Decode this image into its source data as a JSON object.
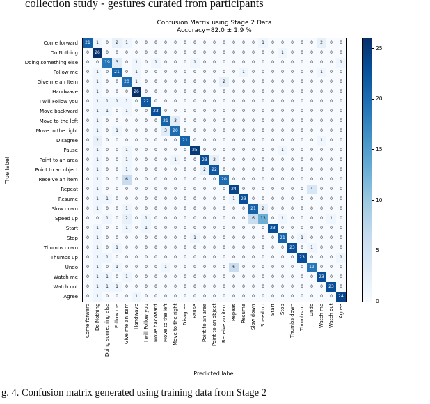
{
  "page": {
    "top_text": "collection study - gestures curated from participants",
    "caption": "g. 4.    Confusion matrix generated using training data from Stage 2"
  },
  "chart_data": {
    "type": "heatmap",
    "title": "Confusion Matrix using Stage 2 Data",
    "subtitle": "Accuracy=82.0 ± 1.9 %",
    "xlabel": "Predicted label",
    "ylabel": "True label",
    "colormap": "Blues",
    "vmin": 0,
    "vmax": 26,
    "colorbar_ticks": [
      0,
      5,
      10,
      15,
      20,
      25
    ],
    "colormap_stops": [
      [
        0,
        [
          247,
          251,
          255
        ]
      ],
      [
        0.125,
        [
          222,
          235,
          247
        ]
      ],
      [
        0.25,
        [
          198,
          219,
          239
        ]
      ],
      [
        0.375,
        [
          158,
          202,
          225
        ]
      ],
      [
        0.5,
        [
          107,
          174,
          214
        ]
      ],
      [
        0.625,
        [
          66,
          146,
          198
        ]
      ],
      [
        0.75,
        [
          33,
          113,
          181
        ]
      ],
      [
        0.875,
        [
          8,
          81,
          156
        ]
      ],
      [
        1,
        [
          8,
          48,
          107
        ]
      ]
    ],
    "labels": [
      "Come forward",
      "Do Nothing",
      "Doing something else",
      "Follow me",
      "Give me an Item",
      "Handwave",
      "I will Follow you",
      "Move backward",
      "Move to the left",
      "Move to the right",
      "Disagree",
      "Pause",
      "Point to an area",
      "Point to an object",
      "Receive an item",
      "Repeat",
      "Resume",
      "Slow down",
      "Speed up",
      "Start",
      "Stop",
      "Thumbs down",
      "Thumbs up",
      "Undo",
      "Watch me",
      "Watch out",
      "Agree"
    ],
    "matrix": [
      [
        21,
        1,
        0,
        2,
        1,
        0,
        0,
        0,
        0,
        0,
        0,
        0,
        0,
        0,
        0,
        0,
        0,
        0,
        1,
        0,
        0,
        0,
        0,
        0,
        2,
        0,
        0
      ],
      [
        0,
        26,
        0,
        0,
        0,
        0,
        0,
        0,
        0,
        0,
        0,
        0,
        0,
        0,
        0,
        0,
        0,
        0,
        0,
        0,
        1,
        0,
        0,
        0,
        0,
        0,
        0
      ],
      [
        0,
        0,
        19,
        3,
        0,
        1,
        0,
        1,
        0,
        0,
        0,
        1,
        0,
        0,
        0,
        0,
        0,
        0,
        0,
        0,
        0,
        0,
        0,
        0,
        0,
        0,
        1
      ],
      [
        0,
        1,
        0,
        21,
        0,
        1,
        0,
        0,
        0,
        0,
        0,
        0,
        0,
        0,
        0,
        0,
        1,
        0,
        0,
        0,
        0,
        0,
        0,
        0,
        1,
        0,
        0
      ],
      [
        0,
        1,
        0,
        0,
        20,
        1,
        0,
        0,
        0,
        0,
        0,
        0,
        0,
        0,
        2,
        0,
        0,
        0,
        0,
        0,
        0,
        0,
        0,
        0,
        0,
        0,
        0
      ],
      [
        0,
        1,
        0,
        0,
        0,
        26,
        0,
        0,
        0,
        0,
        0,
        0,
        0,
        0,
        0,
        0,
        0,
        0,
        0,
        0,
        0,
        0,
        0,
        0,
        0,
        0,
        0
      ],
      [
        0,
        1,
        1,
        1,
        1,
        0,
        22,
        0,
        0,
        0,
        0,
        0,
        0,
        0,
        0,
        0,
        0,
        0,
        0,
        0,
        0,
        0,
        0,
        0,
        0,
        0,
        0
      ],
      [
        0,
        1,
        1,
        0,
        1,
        0,
        0,
        23,
        0,
        0,
        0,
        0,
        0,
        0,
        0,
        0,
        0,
        0,
        0,
        0,
        0,
        0,
        0,
        0,
        0,
        0,
        0
      ],
      [
        0,
        1,
        0,
        0,
        0,
        0,
        0,
        0,
        21,
        3,
        0,
        0,
        0,
        0,
        0,
        0,
        0,
        0,
        0,
        0,
        0,
        0,
        0,
        0,
        0,
        0,
        0
      ],
      [
        0,
        1,
        0,
        1,
        0,
        0,
        0,
        0,
        3,
        20,
        0,
        0,
        0,
        0,
        0,
        0,
        0,
        0,
        0,
        0,
        0,
        0,
        0,
        0,
        0,
        0,
        0
      ],
      [
        0,
        2,
        0,
        0,
        0,
        0,
        0,
        0,
        0,
        0,
        21,
        0,
        0,
        0,
        0,
        0,
        0,
        0,
        0,
        0,
        0,
        0,
        0,
        0,
        1,
        0,
        0
      ],
      [
        0,
        1,
        0,
        0,
        1,
        0,
        0,
        0,
        0,
        0,
        0,
        25,
        0,
        0,
        0,
        0,
        0,
        0,
        0,
        0,
        1,
        0,
        0,
        0,
        0,
        0,
        0
      ],
      [
        0,
        1,
        0,
        0,
        1,
        0,
        0,
        0,
        0,
        1,
        0,
        0,
        23,
        2,
        0,
        0,
        0,
        0,
        0,
        0,
        0,
        0,
        0,
        0,
        0,
        0,
        0
      ],
      [
        0,
        1,
        0,
        0,
        1,
        0,
        0,
        0,
        0,
        0,
        0,
        0,
        2,
        22,
        0,
        0,
        0,
        0,
        0,
        0,
        0,
        0,
        0,
        0,
        0,
        0,
        0
      ],
      [
        0,
        1,
        0,
        0,
        6,
        0,
        0,
        0,
        0,
        0,
        0,
        0,
        0,
        0,
        20,
        0,
        0,
        0,
        0,
        0,
        0,
        0,
        0,
        0,
        0,
        0,
        0
      ],
      [
        0,
        1,
        0,
        0,
        0,
        0,
        0,
        0,
        0,
        0,
        0,
        0,
        0,
        0,
        0,
        24,
        0,
        0,
        0,
        0,
        0,
        0,
        0,
        4,
        0,
        0,
        0
      ],
      [
        0,
        1,
        1,
        0,
        0,
        0,
        0,
        0,
        0,
        0,
        0,
        0,
        0,
        0,
        0,
        1,
        23,
        0,
        0,
        0,
        0,
        0,
        0,
        0,
        0,
        0,
        0
      ],
      [
        0,
        1,
        0,
        0,
        1,
        0,
        0,
        0,
        0,
        0,
        0,
        0,
        0,
        0,
        0,
        0,
        0,
        21,
        2,
        0,
        0,
        0,
        0,
        0,
        0,
        0,
        0
      ],
      [
        0,
        0,
        1,
        0,
        2,
        0,
        1,
        0,
        0,
        0,
        0,
        0,
        0,
        0,
        0,
        0,
        0,
        6,
        13,
        0,
        1,
        0,
        0,
        0,
        0,
        1,
        0
      ],
      [
        0,
        1,
        0,
        0,
        1,
        0,
        1,
        0,
        0,
        0,
        0,
        0,
        0,
        0,
        0,
        0,
        0,
        0,
        0,
        23,
        0,
        0,
        0,
        0,
        0,
        0,
        0
      ],
      [
        0,
        1,
        0,
        0,
        0,
        0,
        0,
        0,
        0,
        0,
        0,
        1,
        0,
        0,
        0,
        0,
        0,
        0,
        0,
        0,
        21,
        0,
        1,
        0,
        0,
        0,
        0
      ],
      [
        0,
        1,
        0,
        1,
        0,
        0,
        0,
        0,
        0,
        0,
        0,
        0,
        0,
        0,
        0,
        0,
        0,
        0,
        0,
        0,
        0,
        23,
        0,
        1,
        0,
        0,
        0
      ],
      [
        0,
        1,
        1,
        0,
        0,
        0,
        0,
        0,
        0,
        0,
        0,
        0,
        0,
        0,
        0,
        0,
        0,
        0,
        0,
        0,
        0,
        0,
        23,
        0,
        0,
        0,
        1
      ],
      [
        0,
        1,
        0,
        1,
        0,
        0,
        0,
        0,
        1,
        0,
        0,
        0,
        0,
        0,
        0,
        6,
        0,
        0,
        0,
        0,
        0,
        0,
        0,
        19,
        0,
        0,
        0
      ],
      [
        0,
        1,
        1,
        0,
        1,
        0,
        0,
        0,
        0,
        0,
        0,
        0,
        0,
        0,
        0,
        0,
        0,
        0,
        0,
        0,
        0,
        0,
        0,
        0,
        23,
        0,
        0
      ],
      [
        0,
        1,
        1,
        1,
        0,
        0,
        0,
        0,
        0,
        0,
        0,
        0,
        0,
        0,
        0,
        0,
        0,
        0,
        0,
        0,
        0,
        0,
        0,
        0,
        0,
        23,
        0
      ],
      [
        0,
        1,
        0,
        0,
        0,
        1,
        0,
        0,
        0,
        0,
        0,
        0,
        0,
        0,
        0,
        0,
        0,
        0,
        0,
        0,
        0,
        0,
        0,
        0,
        0,
        0,
        24
      ]
    ]
  }
}
